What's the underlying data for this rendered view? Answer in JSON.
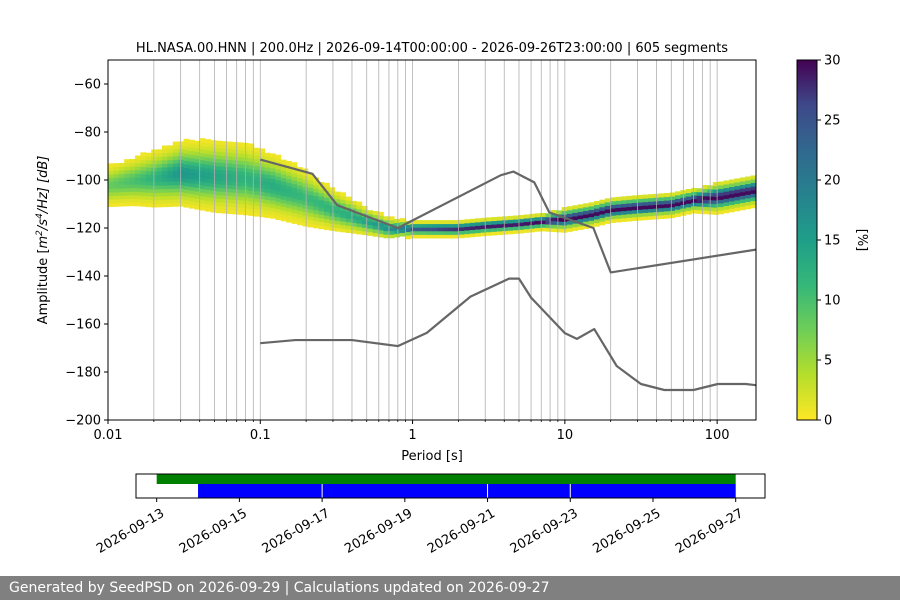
{
  "chart_data": {
    "type": "heatmap",
    "title": "HL.NASA.00.HNN | 200.0Hz | 2026-09-14T00:00:00 - 2026-09-26T23:00:00 | 605 segments",
    "xlabel": "Period [s]",
    "ylabel_prefix": "Amplitude [",
    "ylabel_unit_base1": "m",
    "ylabel_unit_exp1": "2",
    "ylabel_unit_mid": "/s",
    "ylabel_unit_exp2": "4",
    "ylabel_unit_tail": "/Hz] [dB]",
    "x_scale": "log",
    "xlim": [
      0.01,
      180
    ],
    "ylim": [
      -200,
      -50
    ],
    "x_ticks": [
      {
        "value": 0.01,
        "label": "0.01"
      },
      {
        "value": 0.1,
        "label": "0.1"
      },
      {
        "value": 1,
        "label": "1"
      },
      {
        "value": 10,
        "label": "10"
      },
      {
        "value": 100,
        "label": "100"
      }
    ],
    "y_ticks": [
      {
        "value": -60,
        "label": "−60"
      },
      {
        "value": -80,
        "label": "−80"
      },
      {
        "value": -100,
        "label": "−100"
      },
      {
        "value": -120,
        "label": "−120"
      },
      {
        "value": -140,
        "label": "−140"
      },
      {
        "value": -160,
        "label": "−160"
      },
      {
        "value": -180,
        "label": "−180"
      },
      {
        "value": -200,
        "label": "−200"
      }
    ],
    "grid": "vertical-log",
    "colorbar": {
      "label": "[%]",
      "range": [
        0,
        30
      ],
      "colormap": "viridis_r",
      "ticks": [
        {
          "value": 0,
          "label": "0"
        },
        {
          "value": 5,
          "label": "5"
        },
        {
          "value": 10,
          "label": "10"
        },
        {
          "value": 15,
          "label": "15"
        },
        {
          "value": 20,
          "label": "20"
        },
        {
          "value": 25,
          "label": "25"
        },
        {
          "value": 30,
          "label": "30"
        }
      ]
    },
    "psd_density": {
      "periods": [
        0.01,
        0.015,
        0.02,
        0.03,
        0.05,
        0.08,
        0.12,
        0.2,
        0.3,
        0.5,
        0.7,
        1,
        1.5,
        2,
        3,
        5,
        7,
        10,
        15,
        20,
        30,
        50,
        70,
        100,
        180
      ],
      "mode_db": [
        -103,
        -101,
        -100,
        -98,
        -99,
        -100,
        -103,
        -108,
        -113,
        -118,
        -121,
        -121,
        -121,
        -121,
        -120,
        -119,
        -118,
        -117,
        -115,
        -113,
        -112,
        -111,
        -109,
        -108,
        -105
      ],
      "spread_db": [
        6,
        7,
        8,
        9,
        10,
        10,
        9,
        8,
        6,
        4,
        3,
        2,
        2,
        2,
        2,
        2,
        2,
        3,
        3,
        3,
        3,
        3,
        3,
        4,
        4
      ],
      "peak_percent": [
        8,
        10,
        12,
        16,
        14,
        12,
        13,
        11,
        12,
        14,
        17,
        24,
        27,
        28,
        29,
        29,
        30,
        30,
        30,
        30,
        30,
        30,
        30,
        30,
        30
      ]
    },
    "noise_models": [
      {
        "x": [
          0.1,
          0.22,
          0.32,
          0.8,
          3.8,
          4.6,
          6.3,
          7.9,
          15.4,
          20,
          180
        ],
        "y": [
          -91.5,
          -97.4,
          -110.5,
          -120,
          -98,
          -96.5,
          -101,
          -113.5,
          -120,
          -138.5,
          -129
        ]
      },
      {
        "x": [
          0.1,
          0.17,
          0.4,
          0.8,
          1.24,
          2.4,
          4.3,
          5,
          6,
          10,
          12,
          15.6,
          21.9,
          31.6,
          45,
          70,
          101,
          154,
          180
        ],
        "y": [
          -168,
          -166.7,
          -166.7,
          -169.2,
          -163.7,
          -148.6,
          -141.1,
          -141.1,
          -149,
          -163.8,
          -166.2,
          -162.1,
          -177.5,
          -185,
          -187.5,
          -187.5,
          -185,
          -185,
          -185.5
        ]
      }
    ],
    "data_availability": {
      "date_ticks": [
        "2026-09-13",
        "2026-09-15",
        "2026-09-17",
        "2026-09-19",
        "2026-09-21",
        "2026-09-23",
        "2026-09-25",
        "2026-09-27"
      ],
      "range": [
        "2026-09-12T12:00:00",
        "2026-09-27T17:00:00"
      ],
      "green": [
        {
          "start": "2026-09-13T00:00:00",
          "end": "2026-09-27T00:00:00"
        }
      ],
      "blue": [
        {
          "start": "2026-09-14T00:00:00",
          "end": "2026-09-17T00:00:00"
        },
        {
          "start": "2026-09-17T00:00:00",
          "end": "2026-09-21T00:00:00"
        },
        {
          "start": "2026-09-21T00:00:00",
          "end": "2026-09-23T00:00:00"
        },
        {
          "start": "2026-09-23T00:00:00",
          "end": "2026-09-27T00:00:00"
        }
      ],
      "green_color": "#008000",
      "blue_color": "#0000ff"
    }
  },
  "footer": {
    "text": "Generated by SeedPSD on 2026-09-29 | Calculations updated on 2026-09-27"
  }
}
